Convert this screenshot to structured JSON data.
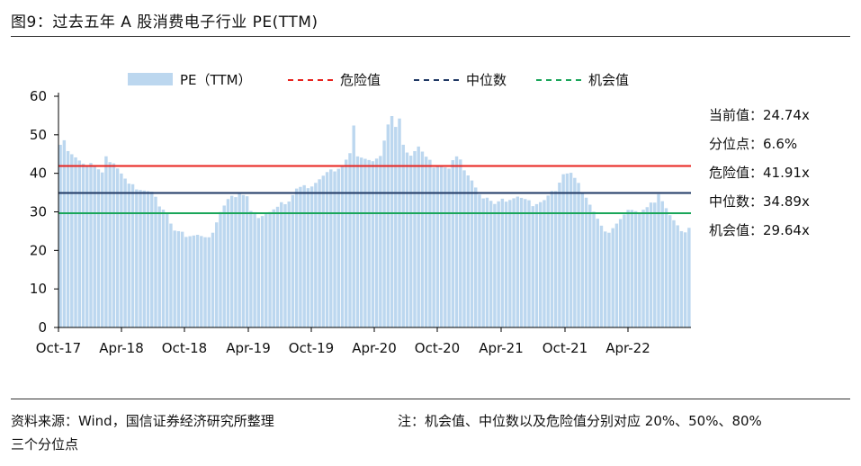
{
  "title": "图9：过去五年 A 股消费电子行业 PE(TTM)",
  "chart_data": {
    "type": "bar",
    "title": "图9：过去五年 A 股消费电子行业 PE(TTM)",
    "ylim": [
      0,
      60
    ],
    "yticks": [
      0,
      10,
      20,
      30,
      40,
      50,
      60
    ],
    "xtick_labels": [
      "Oct-17",
      "Apr-18",
      "Oct-18",
      "Apr-19",
      "Oct-19",
      "Apr-20",
      "Oct-20",
      "Apr-21",
      "Oct-21",
      "Apr-22"
    ],
    "legend": [
      "PE（TTM）",
      "危险值",
      "中位数",
      "机会值"
    ],
    "legend_position": "top",
    "series": [
      {
        "name": "PE（TTM）",
        "type": "bar",
        "color": "#bcd7ef",
        "anchors": [
          [
            0,
            48
          ],
          [
            1,
            49
          ],
          [
            2,
            46
          ],
          [
            4,
            44
          ],
          [
            6,
            42
          ],
          [
            8,
            43
          ],
          [
            10,
            41
          ],
          [
            11,
            40
          ],
          [
            12,
            44
          ],
          [
            14,
            43
          ],
          [
            16,
            40
          ],
          [
            18,
            37
          ],
          [
            21,
            36
          ],
          [
            24,
            35
          ],
          [
            26,
            32
          ],
          [
            28,
            30
          ],
          [
            29,
            27
          ],
          [
            30,
            25
          ],
          [
            33,
            24
          ],
          [
            36,
            24
          ],
          [
            38,
            23
          ],
          [
            40,
            25
          ],
          [
            42,
            30
          ],
          [
            44,
            33
          ],
          [
            47,
            35
          ],
          [
            49,
            34
          ],
          [
            50,
            30
          ],
          [
            52,
            29
          ],
          [
            55,
            30
          ],
          [
            57,
            31
          ],
          [
            58,
            32
          ],
          [
            60,
            33
          ],
          [
            62,
            36
          ],
          [
            66,
            37
          ],
          [
            70,
            40
          ],
          [
            74,
            42
          ],
          [
            76,
            45
          ],
          [
            77,
            52
          ],
          [
            78,
            45
          ],
          [
            80,
            44
          ],
          [
            82,
            43
          ],
          [
            84,
            44
          ],
          [
            85,
            49
          ],
          [
            86,
            53
          ],
          [
            87,
            55
          ],
          [
            88,
            52
          ],
          [
            89,
            54
          ],
          [
            90,
            47
          ],
          [
            92,
            45
          ],
          [
            94,
            47
          ],
          [
            96,
            44
          ],
          [
            98,
            42
          ],
          [
            100,
            42
          ],
          [
            102,
            41
          ],
          [
            104,
            45
          ],
          [
            105,
            44
          ],
          [
            106,
            41
          ],
          [
            108,
            38
          ],
          [
            110,
            34
          ],
          [
            112,
            34
          ],
          [
            114,
            32
          ],
          [
            116,
            33
          ],
          [
            120,
            34
          ],
          [
            124,
            32
          ],
          [
            127,
            33
          ],
          [
            130,
            36
          ],
          [
            132,
            40
          ],
          [
            134,
            40
          ],
          [
            136,
            37
          ],
          [
            138,
            34
          ],
          [
            140,
            30
          ],
          [
            142,
            26
          ],
          [
            144,
            25
          ],
          [
            146,
            27
          ],
          [
            148,
            29
          ],
          [
            150,
            31
          ],
          [
            152,
            30
          ],
          [
            154,
            31
          ],
          [
            156,
            33
          ],
          [
            157,
            35
          ],
          [
            158,
            33
          ],
          [
            160,
            29
          ],
          [
            162,
            26
          ],
          [
            164,
            25
          ],
          [
            165,
            26
          ]
        ],
        "points": 166
      },
      {
        "name": "危险值",
        "type": "hline",
        "value": 41.91,
        "color": "#e8221d"
      },
      {
        "name": "中位数",
        "type": "hline",
        "value": 34.89,
        "color": "#1f3864"
      },
      {
        "name": "机会值",
        "type": "hline",
        "value": 29.64,
        "color": "#1aa65a"
      }
    ]
  },
  "stats": [
    {
      "label": "当前值：",
      "value": "24.74x"
    },
    {
      "label": "分位点：",
      "value": "6.6%"
    },
    {
      "label": "危险值：",
      "value": "41.91x"
    },
    {
      "label": "中位数：",
      "value": "34.89x"
    },
    {
      "label": "机会值：",
      "value": "29.64x"
    }
  ],
  "footer": {
    "source": "资料来源：Wind，国信证券经济研究所整理",
    "note_line1": "注：机会值、中位数以及危险值分别对应 20%、50%、80%",
    "note_line2": "三个分位点"
  }
}
